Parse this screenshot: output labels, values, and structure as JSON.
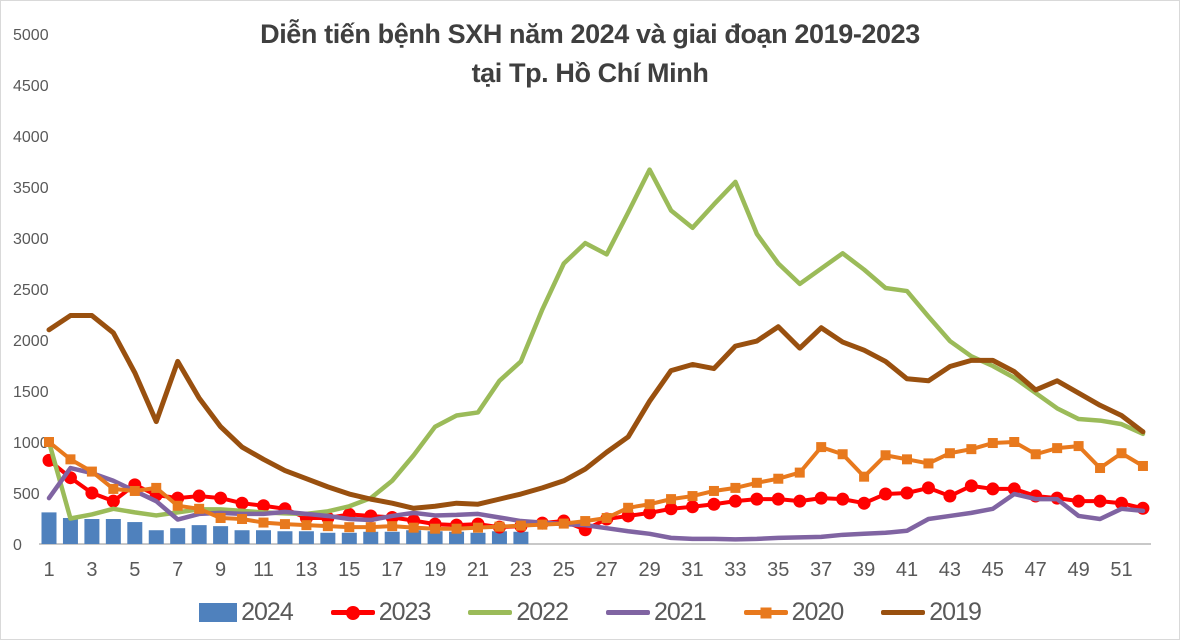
{
  "title": {
    "line1": "Diễn tiến bệnh SXH năm 2024 và giai đoạn 2019-2023",
    "line2": "tại Tp. Hồ Chí Minh"
  },
  "chart_data": {
    "type": "combo",
    "title": "Diễn tiến bệnh SXH năm 2024 và giai đoạn 2019-2023 tại Tp. Hồ Chí Minh",
    "xlabel": "",
    "ylabel": "",
    "x_unit": "epidemiological week 1-52",
    "ylim": [
      0,
      5000
    ],
    "grid": false,
    "legend_position": "bottom",
    "text_color": "#595959",
    "axis_color": "#c8c8c8",
    "y_ticks": [
      0,
      500,
      1000,
      1500,
      2000,
      2500,
      3000,
      3500,
      4000,
      4500,
      5000
    ],
    "x_ticks": [
      "1",
      "3",
      "5",
      "7",
      "9",
      "11",
      "13",
      "15",
      "17",
      "19",
      "21",
      "23",
      "25",
      "27",
      "29",
      "31",
      "33",
      "35",
      "37",
      "39",
      "41",
      "43",
      "45",
      "47",
      "49",
      "51"
    ],
    "series": [
      {
        "name": "2024",
        "type": "bar",
        "color": "#4f81bd",
        "values": [
          310,
          255,
          245,
          245,
          215,
          135,
          155,
          185,
          175,
          135,
          135,
          125,
          125,
          110,
          110,
          120,
          120,
          135,
          125,
          120,
          110,
          125,
          120
        ]
      },
      {
        "name": "2023",
        "type": "line",
        "marker": "circle",
        "color": "#ff0000",
        "width": 4,
        "values": [
          820,
          650,
          500,
          420,
          580,
          480,
          450,
          470,
          450,
          400,
          375,
          345,
          255,
          255,
          290,
          275,
          260,
          230,
          195,
          185,
          195,
          165,
          175,
          205,
          225,
          140,
          245,
          275,
          305,
          345,
          365,
          390,
          420,
          440,
          440,
          420,
          450,
          440,
          400,
          490,
          500,
          550,
          470,
          570,
          540,
          540,
          470,
          450,
          420,
          420,
          400,
          350
        ]
      },
      {
        "name": "2022",
        "type": "line",
        "marker": "none",
        "color": "#9bbb59",
        "width": 4.5,
        "values": [
          1000,
          250,
          290,
          345,
          310,
          280,
          310,
          340,
          340,
          325,
          310,
          300,
          295,
          320,
          370,
          450,
          620,
          870,
          1150,
          1260,
          1290,
          1600,
          1790,
          2300,
          2750,
          2950,
          2840,
          3250,
          3670,
          3270,
          3100,
          3330,
          3550,
          3040,
          2750,
          2550,
          2700,
          2850,
          2690,
          2510,
          2480,
          2230,
          1990,
          1840,
          1745,
          1630,
          1480,
          1330,
          1225,
          1210,
          1175,
          1080
        ]
      },
      {
        "name": "2021",
        "type": "line",
        "marker": "none",
        "color": "#8064a2",
        "width": 4.5,
        "values": [
          450,
          745,
          695,
          620,
          520,
          420,
          240,
          295,
          305,
          295,
          295,
          315,
          295,
          275,
          245,
          235,
          275,
          305,
          280,
          285,
          295,
          260,
          225,
          210,
          195,
          185,
          155,
          125,
          100,
          60,
          50,
          50,
          45,
          50,
          60,
          65,
          70,
          90,
          100,
          110,
          130,
          245,
          275,
          305,
          345,
          490,
          440,
          440,
          275,
          245,
          345,
          325
        ]
      },
      {
        "name": "2020",
        "type": "line",
        "marker": "square",
        "color": "#e8791d",
        "width": 4,
        "values": [
          1000,
          830,
          710,
          540,
          520,
          550,
          375,
          345,
          255,
          245,
          210,
          195,
          185,
          175,
          165,
          165,
          175,
          160,
          150,
          150,
          160,
          170,
          180,
          190,
          200,
          225,
          255,
          355,
          390,
          440,
          470,
          520,
          550,
          600,
          640,
          700,
          950,
          880,
          660,
          870,
          830,
          790,
          890,
          930,
          990,
          1000,
          880,
          940,
          960,
          745,
          890,
          765
        ]
      },
      {
        "name": "2019",
        "type": "line",
        "marker": "none",
        "color": "#99500f",
        "width": 5,
        "values": [
          2100,
          2240,
          2240,
          2070,
          1680,
          1200,
          1790,
          1430,
          1150,
          950,
          830,
          720,
          640,
          560,
          490,
          440,
          400,
          350,
          370,
          400,
          390,
          440,
          490,
          550,
          620,
          735,
          900,
          1050,
          1400,
          1700,
          1760,
          1720,
          1940,
          1990,
          2130,
          1920,
          2120,
          1980,
          1900,
          1790,
          1620,
          1600,
          1740,
          1800,
          1800,
          1690,
          1510,
          1600,
          1480,
          1360,
          1260,
          1100
        ]
      }
    ]
  },
  "legend": {
    "items": [
      {
        "label": "2024",
        "swatch": "bar",
        "color": "#4f81bd"
      },
      {
        "label": "2023",
        "swatch": "line-circle",
        "color": "#ff0000"
      },
      {
        "label": "2022",
        "swatch": "line",
        "color": "#9bbb59"
      },
      {
        "label": "2021",
        "swatch": "line",
        "color": "#8064a2"
      },
      {
        "label": "2020",
        "swatch": "line-square",
        "color": "#e8791d"
      },
      {
        "label": "2019",
        "swatch": "line",
        "color": "#99500f"
      }
    ]
  }
}
